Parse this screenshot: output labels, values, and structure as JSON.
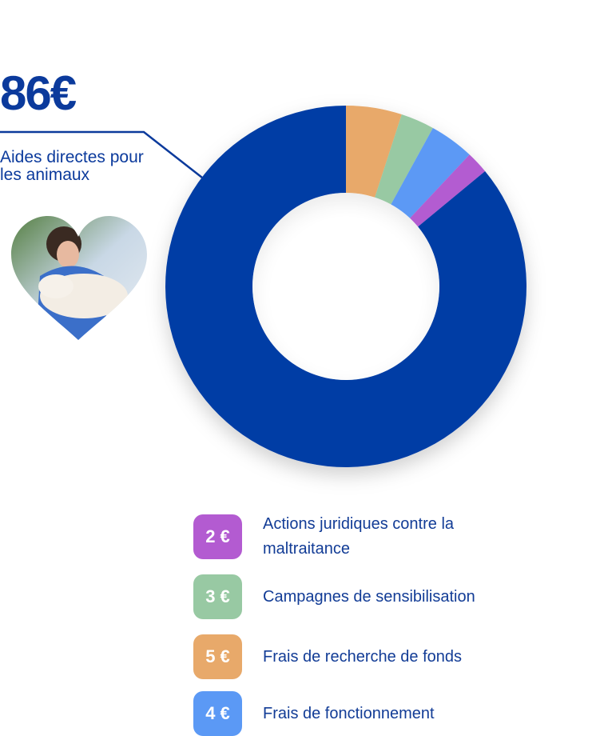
{
  "chart_data": {
    "type": "pie",
    "categories": [
      "Frais de recherche de fonds",
      "Campagnes de sensibilisation",
      "Frais de fonctionnement",
      "Actions juridiques contre la maltraitance",
      "Aides directes pour les animaux"
    ],
    "values": [
      5,
      3,
      4,
      2,
      86
    ],
    "value_labels": [
      "5 €",
      "3 €",
      "4 €",
      "2 €",
      "86€"
    ],
    "colors": [
      "#e8a96a",
      "#98c9a3",
      "#5b99f5",
      "#b35bd1",
      "#003da5"
    ]
  }
}
